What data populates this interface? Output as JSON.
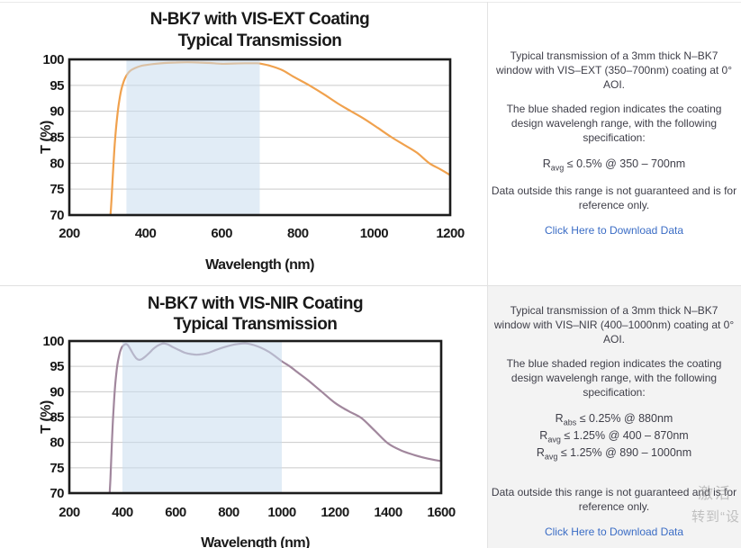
{
  "chart_data": [
    {
      "type": "line",
      "title_lines": [
        "N-BK7 with VIS-EXT Coating",
        "Typical Transmission"
      ],
      "xlabel": "Wavelength (nm)",
      "ylabel": "T (%)",
      "xlim": [
        200,
        1200
      ],
      "ylim": [
        70,
        100
      ],
      "xticks": [
        200,
        400,
        600,
        800,
        1000,
        1200
      ],
      "yticks": [
        70,
        75,
        80,
        85,
        90,
        95,
        100
      ],
      "grid": true,
      "shaded_region_nm": [
        350,
        700
      ],
      "line_color": "#F0A14D",
      "shade_color": "#C9DCEF",
      "series": [
        {
          "name": "Typical Transmission",
          "points": [
            [
              308,
              70
            ],
            [
              310,
              72
            ],
            [
              313,
              76
            ],
            [
              316,
              80
            ],
            [
              320,
              84.5
            ],
            [
              325,
              88.5
            ],
            [
              330,
              91.5
            ],
            [
              336,
              94
            ],
            [
              343,
              95.8
            ],
            [
              350,
              96.9
            ],
            [
              360,
              97.8
            ],
            [
              372,
              98.3
            ],
            [
              386,
              98.7
            ],
            [
              400,
              98.9
            ],
            [
              420,
              99.1
            ],
            [
              450,
              99.3
            ],
            [
              480,
              99.4
            ],
            [
              510,
              99.45
            ],
            [
              540,
              99.4
            ],
            [
              570,
              99.3
            ],
            [
              600,
              99.15
            ],
            [
              630,
              99.2
            ],
            [
              660,
              99.25
            ],
            [
              690,
              99.25
            ],
            [
              700,
              99.2
            ],
            [
              730,
              98.7
            ],
            [
              760,
              97.9
            ],
            [
              790,
              96.6
            ],
            [
              830,
              95
            ],
            [
              870,
              93.2
            ],
            [
              905,
              91.5
            ],
            [
              940,
              90
            ],
            [
              975,
              88.5
            ],
            [
              1010,
              86.8
            ],
            [
              1046,
              85
            ],
            [
              1080,
              83.5
            ],
            [
              1113,
              82
            ],
            [
              1145,
              80
            ],
            [
              1175,
              78.8
            ],
            [
              1200,
              77.7
            ]
          ]
        }
      ]
    },
    {
      "type": "line",
      "title_lines": [
        "N-BK7 with VIS-NIR Coating",
        "Typical Transmission"
      ],
      "xlabel": "Wavelength (nm)",
      "ylabel": "T (%)",
      "xlim": [
        200,
        1600
      ],
      "ylim": [
        70,
        100
      ],
      "xticks": [
        200,
        400,
        600,
        800,
        1000,
        1200,
        1400,
        1600
      ],
      "yticks": [
        70,
        75,
        80,
        85,
        90,
        95,
        100
      ],
      "grid": true,
      "shaded_region_nm": [
        400,
        1000
      ],
      "line_color": "#A1879D",
      "shade_color": "#C9DCEF",
      "series": [
        {
          "name": "Typical Transmission",
          "points": [
            [
              352,
              70
            ],
            [
              355,
              73
            ],
            [
              358,
              77
            ],
            [
              362,
              82
            ],
            [
              367,
              87
            ],
            [
              373,
              91.5
            ],
            [
              380,
              95
            ],
            [
              388,
              97.3
            ],
            [
              396,
              98.6
            ],
            [
              405,
              99.2
            ],
            [
              413,
              99.4
            ],
            [
              420,
              99.2
            ],
            [
              430,
              98.4
            ],
            [
              442,
              97.3
            ],
            [
              452,
              96.6
            ],
            [
              462,
              96.3
            ],
            [
              472,
              96.4
            ],
            [
              485,
              96.9
            ],
            [
              500,
              97.6
            ],
            [
              515,
              98.4
            ],
            [
              530,
              99
            ],
            [
              545,
              99.4
            ],
            [
              558,
              99.5
            ],
            [
              572,
              99.3
            ],
            [
              590,
              98.8
            ],
            [
              610,
              98.3
            ],
            [
              635,
              97.7
            ],
            [
              660,
              97.4
            ],
            [
              680,
              97.3
            ],
            [
              700,
              97.4
            ],
            [
              725,
              97.7
            ],
            [
              755,
              98.3
            ],
            [
              790,
              98.9
            ],
            [
              820,
              99.3
            ],
            [
              850,
              99.5
            ],
            [
              870,
              99.5
            ],
            [
              895,
              99.2
            ],
            [
              920,
              98.7
            ],
            [
              950,
              97.9
            ],
            [
              975,
              97
            ],
            [
              1000,
              96
            ],
            [
              1030,
              95
            ],
            [
              1060,
              93.8
            ],
            [
              1100,
              92.2
            ],
            [
              1150,
              90
            ],
            [
              1200,
              87.8
            ],
            [
              1250,
              86.2
            ],
            [
              1300,
              84.8
            ],
            [
              1350,
              82.3
            ],
            [
              1400,
              79.8
            ],
            [
              1450,
              78.4
            ],
            [
              1500,
              77.5
            ],
            [
              1550,
              76.8
            ],
            [
              1600,
              76.3
            ]
          ]
        }
      ]
    }
  ],
  "sections": [
    {
      "panel": {
        "p1": "Typical transmission of a 3mm thick N–BK7 window with VIS–EXT (350–700nm) coating at 0° AOI.",
        "p2": "The blue shaded region indicates the coating design wavelengh range, with the following specification:",
        "specs": [
          {
            "pre": "R",
            "sub": "avg",
            "rest": "≤ 0.5% @ 350 – 700nm"
          }
        ],
        "p3": "Data outside this range is not guaranteed and is for reference only.",
        "link": "Click Here to Download Data"
      }
    },
    {
      "panel": {
        "p1": "Typical transmission of a 3mm thick N–BK7 window with VIS–NIR (400–1000nm) coating at 0° AOI.",
        "p2": "The blue shaded region indicates the coating design wavelengh range, with the following specification:",
        "specs": [
          {
            "pre": "R",
            "sub": "abs",
            "rest": "≤ 0.25% @ 880nm"
          },
          {
            "pre": "R",
            "sub": "avg",
            "rest": "≤ 1.25% @ 400 – 870nm"
          },
          {
            "pre": "R",
            "sub": "avg",
            "rest": "≤ 1.25% @ 890 – 1000nm"
          }
        ],
        "p3": "Data outside this range is not guaranteed and is for reference only.",
        "link": "Click Here to Download Data"
      }
    }
  ],
  "watermark": {
    "line1": "激活",
    "line2": "转到“设"
  },
  "colors": {
    "link": "#3a6cc5",
    "body_text": "#3e3e48",
    "panel_gray": "#f3f3f3",
    "orange_curve": "#F0A14D",
    "purple_curve": "#A1879D",
    "shade_blue": "#C9DCEF"
  }
}
